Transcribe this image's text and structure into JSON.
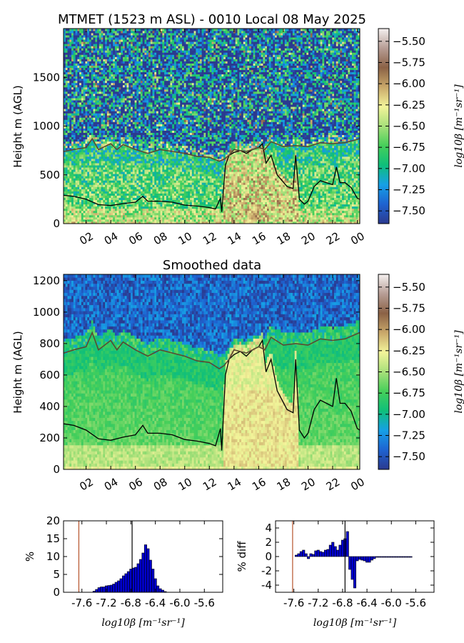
{
  "figure": {
    "title": "MTMET (1523 m ASL) - 0010 Local 08 May 2025"
  },
  "colorbar": {
    "label": "log10β [m⁻¹sr⁻¹]",
    "ticks": [
      "−5.50",
      "−5.75",
      "−6.00",
      "−6.25",
      "−6.50",
      "−6.75",
      "−7.00",
      "−7.25",
      "−7.50"
    ],
    "range": [
      -7.65,
      -5.35
    ],
    "colors": [
      "#2b3a8f",
      "#1e63d1",
      "#16a0e6",
      "#0fbf7a",
      "#46cf5a",
      "#a8e07a",
      "#f3f49a",
      "#c9a86a",
      "#8b6246",
      "#b79d95",
      "#f5f1f0"
    ]
  },
  "chart_data": [
    {
      "type": "heatmap",
      "panel": "raw",
      "title": "",
      "xlabel": "",
      "ylabel": "Height m (AGL)",
      "xtick_labels": [
        "02",
        "04",
        "06",
        "08",
        "10",
        "12",
        "14",
        "16",
        "18",
        "20",
        "22",
        "00"
      ],
      "yticks": [
        0,
        500,
        1000,
        1500
      ],
      "ylim": [
        0,
        2000
      ],
      "xlim_hours": [
        0.17,
        24.2
      ],
      "line_series": [
        {
          "color": "#000000",
          "x": [
            0.2,
            1,
            2,
            3,
            4,
            5,
            6,
            6.6,
            7,
            8,
            9,
            10,
            11,
            12,
            12.5,
            12.9,
            13,
            13.3,
            13.6,
            14,
            14.5,
            15,
            15.5,
            16,
            16.3,
            16.6,
            17,
            17.5,
            17.9,
            18.3,
            18.8,
            19,
            19.3,
            19.7,
            20,
            20.5,
            21,
            21.5,
            22,
            22.3,
            22.6,
            23,
            23.5,
            24,
            24.2
          ],
          "y": [
            290,
            280,
            250,
            195,
            185,
            205,
            220,
            280,
            230,
            230,
            220,
            190,
            180,
            165,
            150,
            260,
            120,
            600,
            700,
            730,
            750,
            720,
            760,
            780,
            820,
            620,
            700,
            500,
            440,
            380,
            360,
            700,
            250,
            200,
            230,
            380,
            440,
            420,
            400,
            580,
            420,
            420,
            370,
            260,
            250
          ]
        },
        {
          "color": "#5a4a32",
          "x": [
            0.2,
            1,
            2,
            2.5,
            3,
            4,
            4.5,
            5,
            6,
            7,
            8,
            9,
            10,
            11,
            12,
            12.8,
            13.2,
            13.6,
            14,
            15,
            16,
            16.5,
            17,
            18,
            19,
            20,
            21,
            22,
            23,
            24.2
          ],
          "y": [
            740,
            760,
            780,
            870,
            760,
            820,
            760,
            810,
            760,
            720,
            760,
            740,
            720,
            690,
            680,
            640,
            660,
            700,
            760,
            740,
            780,
            760,
            840,
            790,
            800,
            790,
            830,
            820,
            830,
            870
          ]
        }
      ]
    },
    {
      "type": "heatmap",
      "panel": "smoothed",
      "title": "Smoothed data",
      "xlabel": "",
      "ylabel": "Height m (AGL)",
      "xtick_labels": [
        "02",
        "04",
        "06",
        "08",
        "10",
        "12",
        "14",
        "16",
        "18",
        "20",
        "22",
        "00"
      ],
      "yticks": [
        0,
        200,
        400,
        600,
        800,
        1000,
        1200
      ],
      "ylim": [
        0,
        1240
      ],
      "xlim_hours": [
        0.17,
        24.2
      ],
      "line_series": [
        {
          "color": "#000000",
          "x": [
            0.2,
            1,
            2,
            3,
            4,
            5,
            6,
            6.6,
            7,
            8,
            9,
            10,
            11,
            12,
            12.5,
            12.9,
            13,
            13.3,
            13.6,
            14,
            14.5,
            15,
            15.5,
            16,
            16.3,
            16.6,
            17,
            17.5,
            17.9,
            18.3,
            18.8,
            19,
            19.3,
            19.7,
            20,
            20.5,
            21,
            21.5,
            22,
            22.3,
            22.6,
            23,
            23.5,
            24,
            24.2
          ],
          "y": [
            290,
            280,
            250,
            195,
            185,
            205,
            220,
            280,
            230,
            230,
            220,
            190,
            180,
            165,
            150,
            260,
            120,
            600,
            700,
            730,
            750,
            720,
            760,
            780,
            820,
            620,
            700,
            500,
            440,
            380,
            360,
            700,
            250,
            200,
            230,
            380,
            440,
            420,
            400,
            580,
            420,
            420,
            370,
            260,
            250
          ]
        },
        {
          "color": "#5a4a32",
          "x": [
            0.2,
            1,
            2,
            2.5,
            3,
            4,
            4.5,
            5,
            6,
            7,
            8,
            9,
            10,
            11,
            12,
            12.8,
            13.2,
            13.6,
            14,
            15,
            16,
            16.5,
            17,
            18,
            19,
            20,
            21,
            22,
            23,
            24.2
          ],
          "y": [
            740,
            760,
            780,
            870,
            760,
            820,
            760,
            810,
            760,
            720,
            760,
            740,
            720,
            690,
            680,
            640,
            660,
            700,
            760,
            740,
            780,
            760,
            840,
            790,
            800,
            790,
            830,
            820,
            830,
            870
          ]
        }
      ]
    },
    {
      "type": "bar",
      "panel": "histogram",
      "xlabel": "log10β [m⁻¹sr⁻¹]",
      "ylabel": "%",
      "xlim": [
        -7.9,
        -5.3
      ],
      "ylim": [
        0,
        20
      ],
      "yticks": [
        0,
        5,
        10,
        15,
        20
      ],
      "xtick_labels": [
        "-7.6",
        "-7.2",
        "-6.8",
        "-6.4",
        "-6.0",
        "-5.6"
      ],
      "bin_width": 0.04,
      "bin_start": -7.42,
      "values": [
        0.3,
        0.8,
        1.3,
        1.5,
        1.5,
        1.8,
        1.9,
        2.0,
        2.3,
        2.8,
        3.2,
        3.8,
        4.6,
        5.2,
        5.8,
        6.5,
        6.8,
        7.0,
        8.0,
        9.2,
        11.0,
        13.3,
        12.2,
        9.0,
        6.5,
        3.8,
        1.8,
        1.0,
        0.6,
        0.2
      ],
      "vlines": [
        {
          "x": -7.65,
          "color": "#b5532a"
        },
        {
          "x": -6.78,
          "color": "#000000"
        }
      ]
    },
    {
      "type": "bar",
      "panel": "difference",
      "xlabel": "log10β [m⁻¹sr⁻¹]",
      "ylabel": "% diff",
      "xlim": [
        -7.9,
        -5.3
      ],
      "ylim": [
        -5,
        5
      ],
      "yticks": [
        -4,
        -2,
        0,
        2,
        4
      ],
      "xtick_labels": [
        "-7.6",
        "-7.2",
        "-6.8",
        "-6.4",
        "-6.0",
        "-5.6"
      ],
      "bin_width": 0.04,
      "bin_start": -7.58,
      "values": [
        0.2,
        0.4,
        0.7,
        0.9,
        0.4,
        -0.3,
        0.4,
        0.3,
        0.8,
        0.9,
        0.7,
        0.6,
        0.9,
        1.0,
        1.6,
        2.0,
        1.4,
        0.9,
        1.6,
        2.3,
        2.5,
        3.5,
        -1.8,
        -3.2,
        -4.4,
        -0.6,
        -0.4,
        -0.5,
        -0.6,
        -0.8,
        -0.8,
        -0.5,
        -0.3,
        -0.1,
        -0.1,
        -0.1,
        -0.1,
        -0.1,
        -0.1,
        -0.1,
        -0.1,
        -0.1,
        -0.1,
        -0.1,
        -0.1,
        -0.1,
        -0.1,
        -0.1
      ],
      "vlines": [
        {
          "x": -7.62,
          "color": "#b5532a"
        },
        {
          "x": -6.76,
          "color": "#000000"
        }
      ]
    }
  ]
}
